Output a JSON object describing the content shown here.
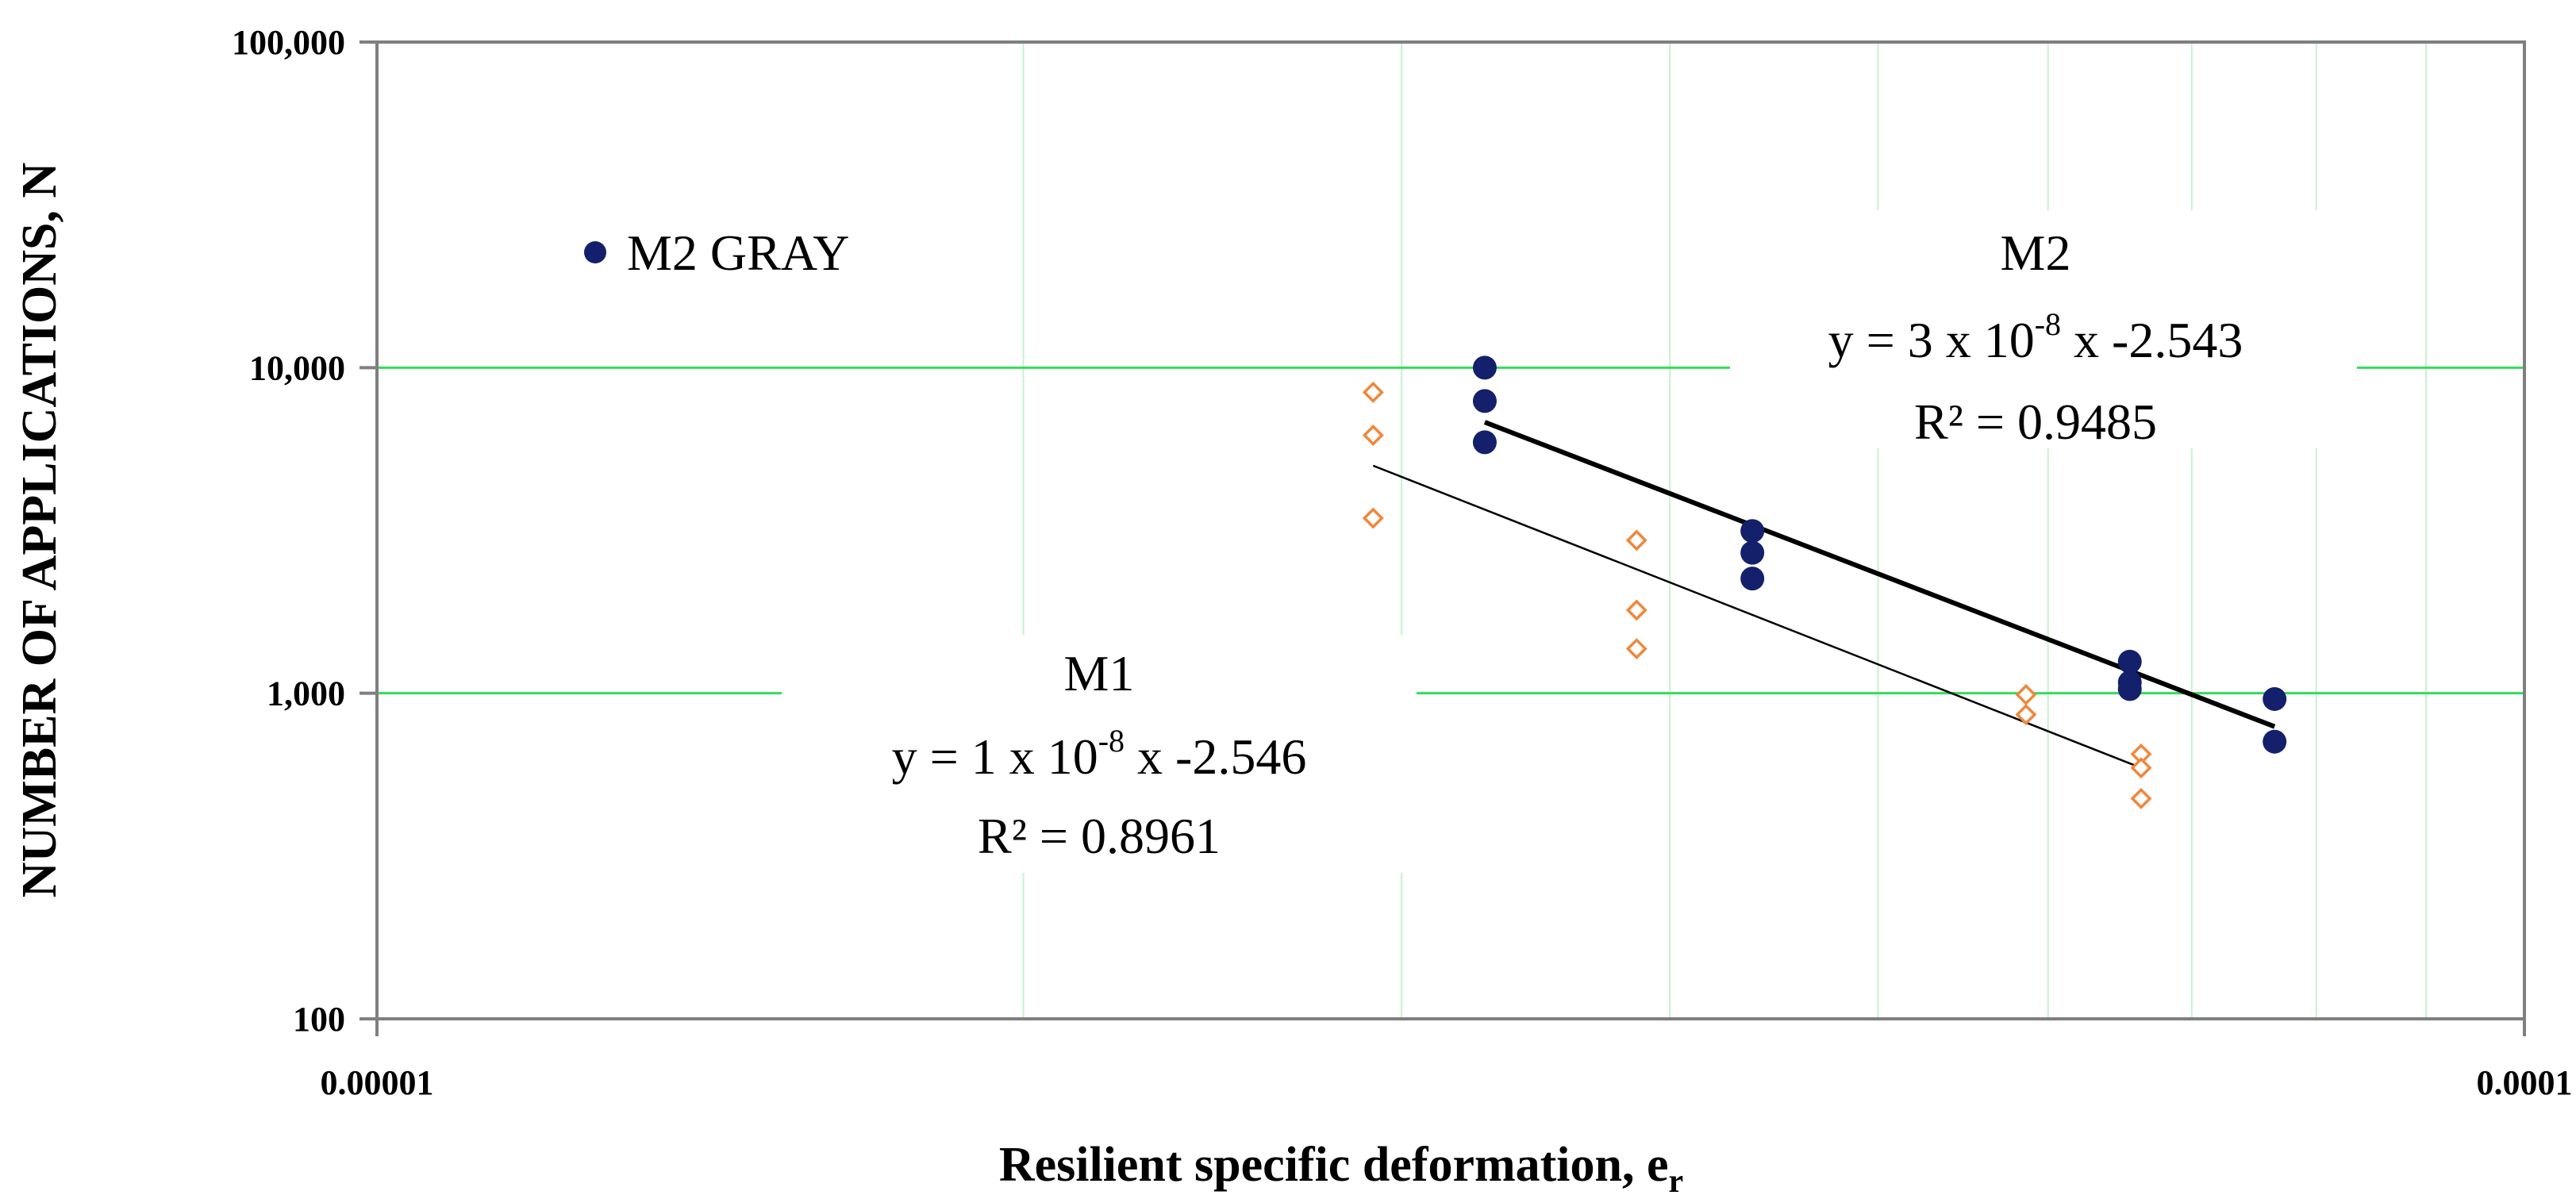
{
  "chart_data": {
    "type": "scatter",
    "xlabel": "Resilient specific deformation, e",
    "xlabel_sub": "r",
    "ylabel": "NUMBER OF APPLICATIONS, N",
    "x_scale": "log",
    "y_scale": "log",
    "xlim": [
      1e-05,
      0.0001
    ],
    "ylim": [
      100,
      100000
    ],
    "x_ticks": [
      {
        "value": 1e-05,
        "label": "0.00001"
      },
      {
        "value": 0.0001,
        "label": "0.0001"
      }
    ],
    "y_ticks": [
      {
        "value": 100,
        "label": "100"
      },
      {
        "value": 1000,
        "label": "1,000"
      },
      {
        "value": 10000,
        "label": "10,000"
      },
      {
        "value": 100000,
        "label": "100,000"
      }
    ],
    "grid": {
      "major_y": true,
      "minor_x": true
    },
    "legend": {
      "position": "top-left",
      "entries": [
        {
          "label": "M2 GRAY",
          "color": "#14206b",
          "marker": "circle"
        }
      ]
    },
    "series": [
      {
        "name": "M2 GRAY",
        "marker": "circle",
        "color": "#14206b",
        "x": [
          3.28e-05,
          3.28e-05,
          3.28e-05,
          4.37e-05,
          4.37e-05,
          4.37e-05,
          6.55e-05,
          6.55e-05,
          6.55e-05,
          7.65e-05,
          7.65e-05
        ],
        "y": [
          10000,
          7900,
          5900,
          3150,
          2700,
          2250,
          1250,
          1080,
          1030,
          960,
          710
        ]
      },
      {
        "name": "",
        "marker": "diamond",
        "color": "#f0873a",
        "x": [
          2.91e-05,
          2.91e-05,
          2.91e-05,
          3.86e-05,
          3.86e-05,
          3.86e-05,
          5.86e-05,
          5.86e-05,
          6.63e-05,
          6.63e-05,
          6.63e-05
        ],
        "y": [
          8400,
          6200,
          3450,
          2950,
          1800,
          1370,
          990,
          860,
          650,
          590,
          475
        ]
      }
    ],
    "trendlines": [
      {
        "name": "M2",
        "x": [
          3.28e-05,
          7.65e-05
        ],
        "y": [
          6800,
          790
        ],
        "color": "#000000",
        "width": 6
      },
      {
        "name": "M1",
        "x": [
          2.91e-05,
          6.63e-05
        ],
        "y": [
          5000,
          590
        ],
        "color": "#000000",
        "width": 2.5
      }
    ],
    "annotations": [
      {
        "title": "M2",
        "coef": "3",
        "exp": "-8",
        "power": "-2.543",
        "r2": "R² = 0.9485"
      },
      {
        "title": "M1",
        "coef": "1",
        "exp": "-8",
        "power": "-2.546",
        "r2": "R² = 0.8961"
      }
    ]
  }
}
